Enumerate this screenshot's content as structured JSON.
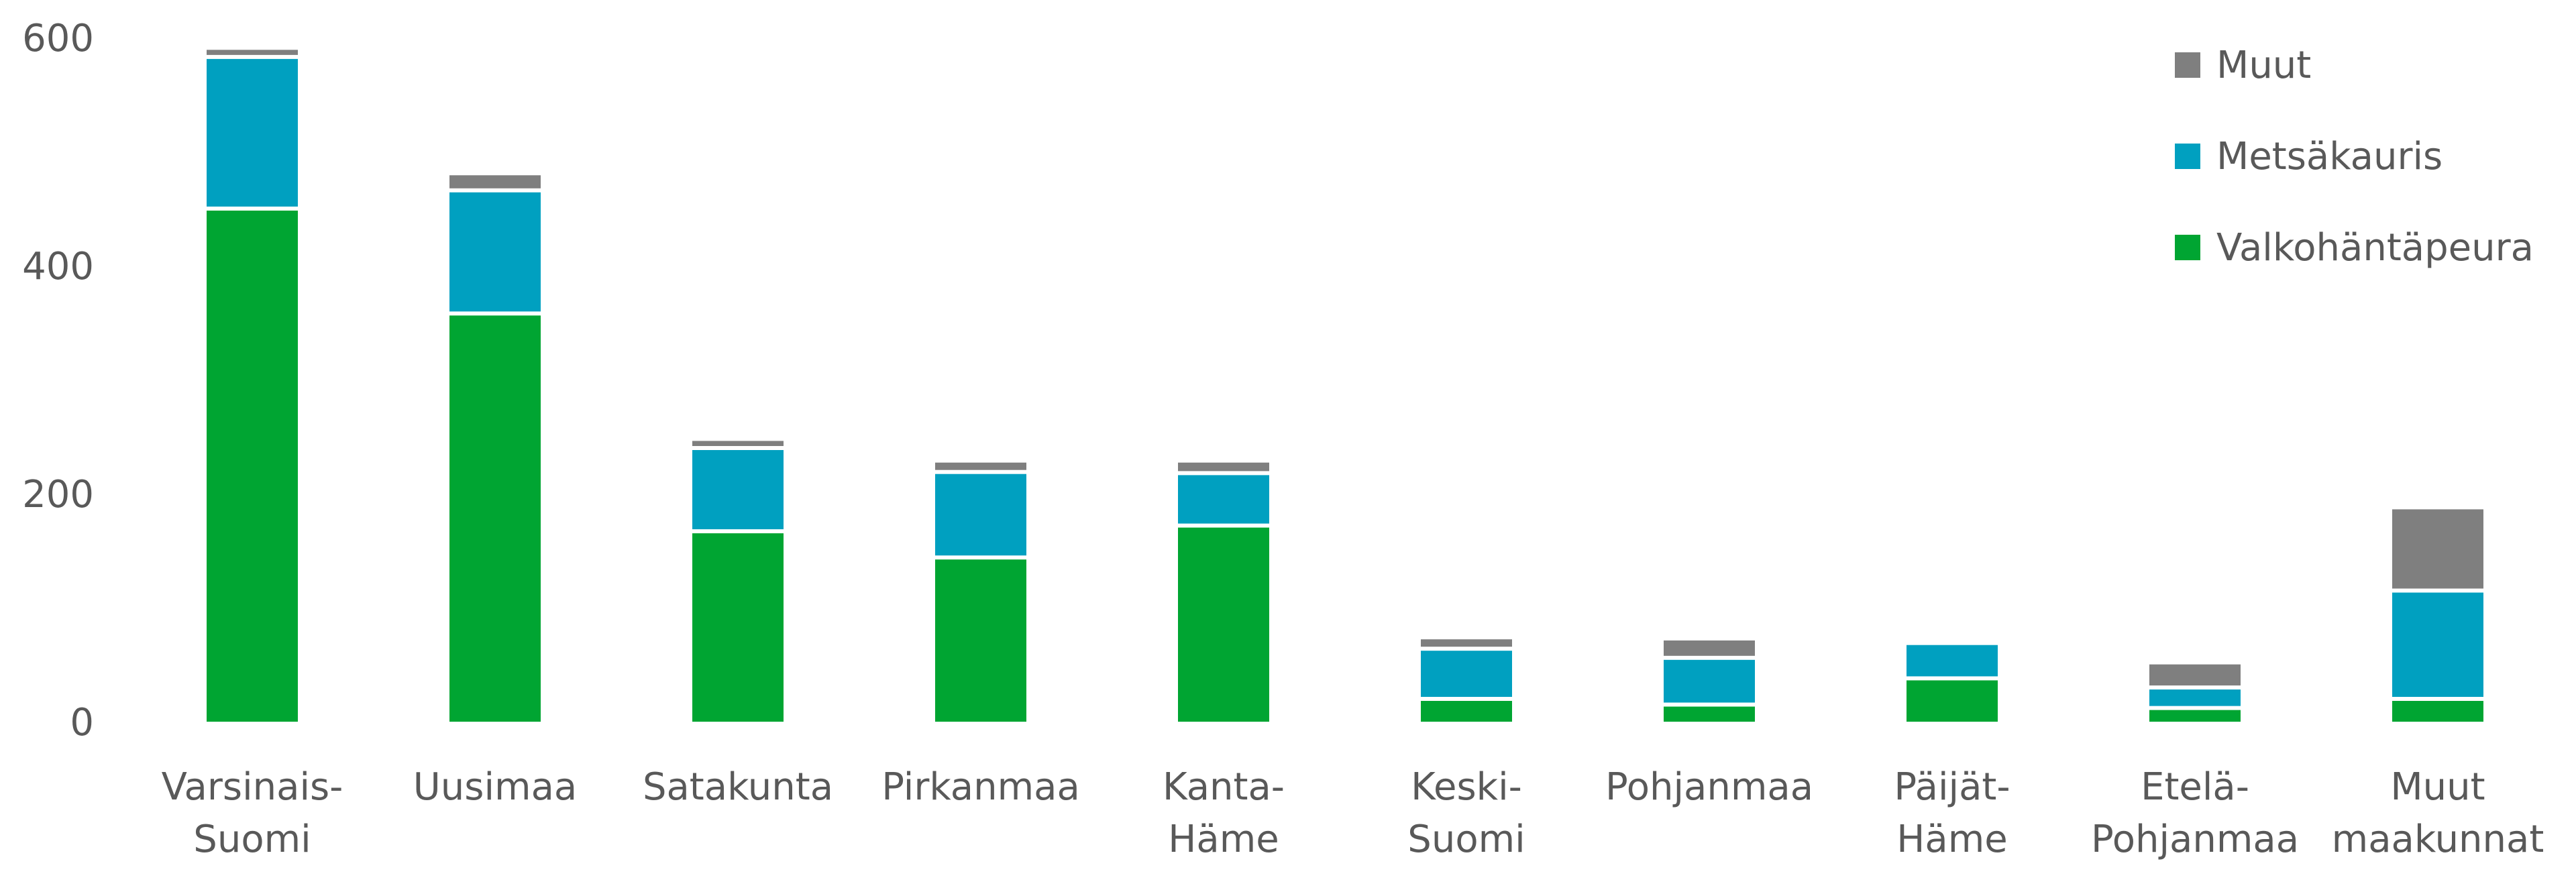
{
  "chart_data": {
    "type": "bar",
    "stacked": true,
    "categories": [
      [
        "Varsinais-",
        "Suomi"
      ],
      [
        "Uusimaa"
      ],
      [
        "Satakunta"
      ],
      [
        "Pirkanmaa"
      ],
      [
        "Kanta-",
        "Häme"
      ],
      [
        "Keski-",
        "Suomi"
      ],
      [
        "Pohjanmaa"
      ],
      [
        "Päijät-",
        "Häme"
      ],
      [
        "Etelä-",
        "Pohjanmaa"
      ],
      [
        "Muut",
        "maakunnat"
      ]
    ],
    "series": [
      {
        "name": "Valkohäntäpeura",
        "color": "#00a532",
        "values": [
          450,
          358,
          167,
          144,
          172,
          20,
          15,
          38,
          12,
          20
        ]
      },
      {
        "name": "Metsäkauris",
        "color": "#00a0c0",
        "values": [
          133,
          108,
          73,
          75,
          46,
          44,
          41,
          31,
          18,
          95
        ]
      },
      {
        "name": "Muut",
        "color": "#7f7f7f",
        "values": [
          8,
          15,
          8,
          10,
          11,
          10,
          17,
          0,
          22,
          73
        ]
      }
    ],
    "legend_order": [
      "Muut",
      "Metsäkauris",
      "Valkohäntäpeura"
    ],
    "legend_position": "top-right",
    "ylim": [
      0,
      600
    ],
    "yticks": [
      0,
      200,
      400,
      600
    ],
    "grid": false,
    "title": "",
    "xlabel": "",
    "ylabel": ""
  }
}
